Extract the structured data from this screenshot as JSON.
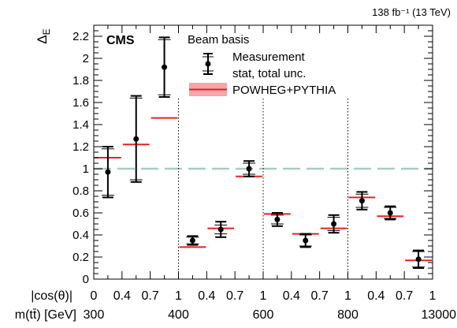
{
  "chart_data": {
    "type": "scatter",
    "title": "",
    "lumi_label": "138 fb⁻¹ (13 TeV)",
    "experiment": "CMS",
    "ylabel": "Δ_E",
    "ylim": [
      0,
      2.3
    ],
    "yticks": [
      0,
      0.2,
      0.4,
      0.6,
      0.8,
      1,
      1.2,
      1.4,
      1.6,
      1.8,
      2,
      2.2
    ],
    "x_bin_count": 12,
    "reference_line": 1.0,
    "group_separators": [
      3,
      6,
      9
    ],
    "costheta_axis": {
      "label": "|cos(θ)|",
      "ticks": [
        {
          "bin": 0,
          "label": "0"
        },
        {
          "bin": 1,
          "label": "0.4"
        },
        {
          "bin": 2,
          "label": "0.7"
        },
        {
          "bin": 3,
          "label": "1"
        },
        {
          "bin": 4,
          "label": "0.4"
        },
        {
          "bin": 5,
          "label": "0.7"
        },
        {
          "bin": 6,
          "label": "1"
        },
        {
          "bin": 7,
          "label": "0.4"
        },
        {
          "bin": 8,
          "label": "0.7"
        },
        {
          "bin": 9,
          "label": "1"
        },
        {
          "bin": 10,
          "label": "0.4"
        },
        {
          "bin": 11,
          "label": "0.7"
        },
        {
          "bin": 12,
          "label": "1"
        }
      ]
    },
    "mass_axis": {
      "label": "m(tt̄) [GeV]",
      "ticks": [
        {
          "bin": 0,
          "label": "300"
        },
        {
          "bin": 3,
          "label": "400"
        },
        {
          "bin": 6,
          "label": "600"
        },
        {
          "bin": 9,
          "label": "800"
        },
        {
          "bin": 12,
          "label": "13000"
        }
      ]
    },
    "legend": {
      "header": "Beam basis",
      "measurement_label": "Measurement",
      "unc_label": "stat, total unc.",
      "prediction_label": "POWHEG+PYTHIA",
      "placement": "top"
    },
    "colors": {
      "prediction": "#e8201f",
      "prediction_band": "#f4a6a8",
      "reference": "#a5cdc5",
      "measurement": "#000000"
    },
    "series": [
      {
        "name": "Measurement",
        "values": [
          0.97,
          1.27,
          1.92,
          0.35,
          0.45,
          1.0,
          0.54,
          0.35,
          0.5,
          0.71,
          0.6,
          0.18
        ],
        "stat_unc": [
          0.21,
          0.37,
          0.25,
          0.03,
          0.04,
          0.05,
          0.04,
          0.05,
          0.06,
          0.06,
          0.05,
          0.07
        ],
        "total_unc": [
          0.23,
          0.39,
          0.27,
          0.04,
          0.07,
          0.07,
          0.06,
          0.06,
          0.08,
          0.08,
          0.06,
          0.08
        ]
      },
      {
        "name": "POWHEG+PYTHIA",
        "values": [
          1.1,
          1.22,
          1.46,
          0.29,
          0.46,
          0.93,
          0.59,
          0.41,
          0.46,
          0.74,
          0.57,
          0.17
        ]
      }
    ]
  }
}
